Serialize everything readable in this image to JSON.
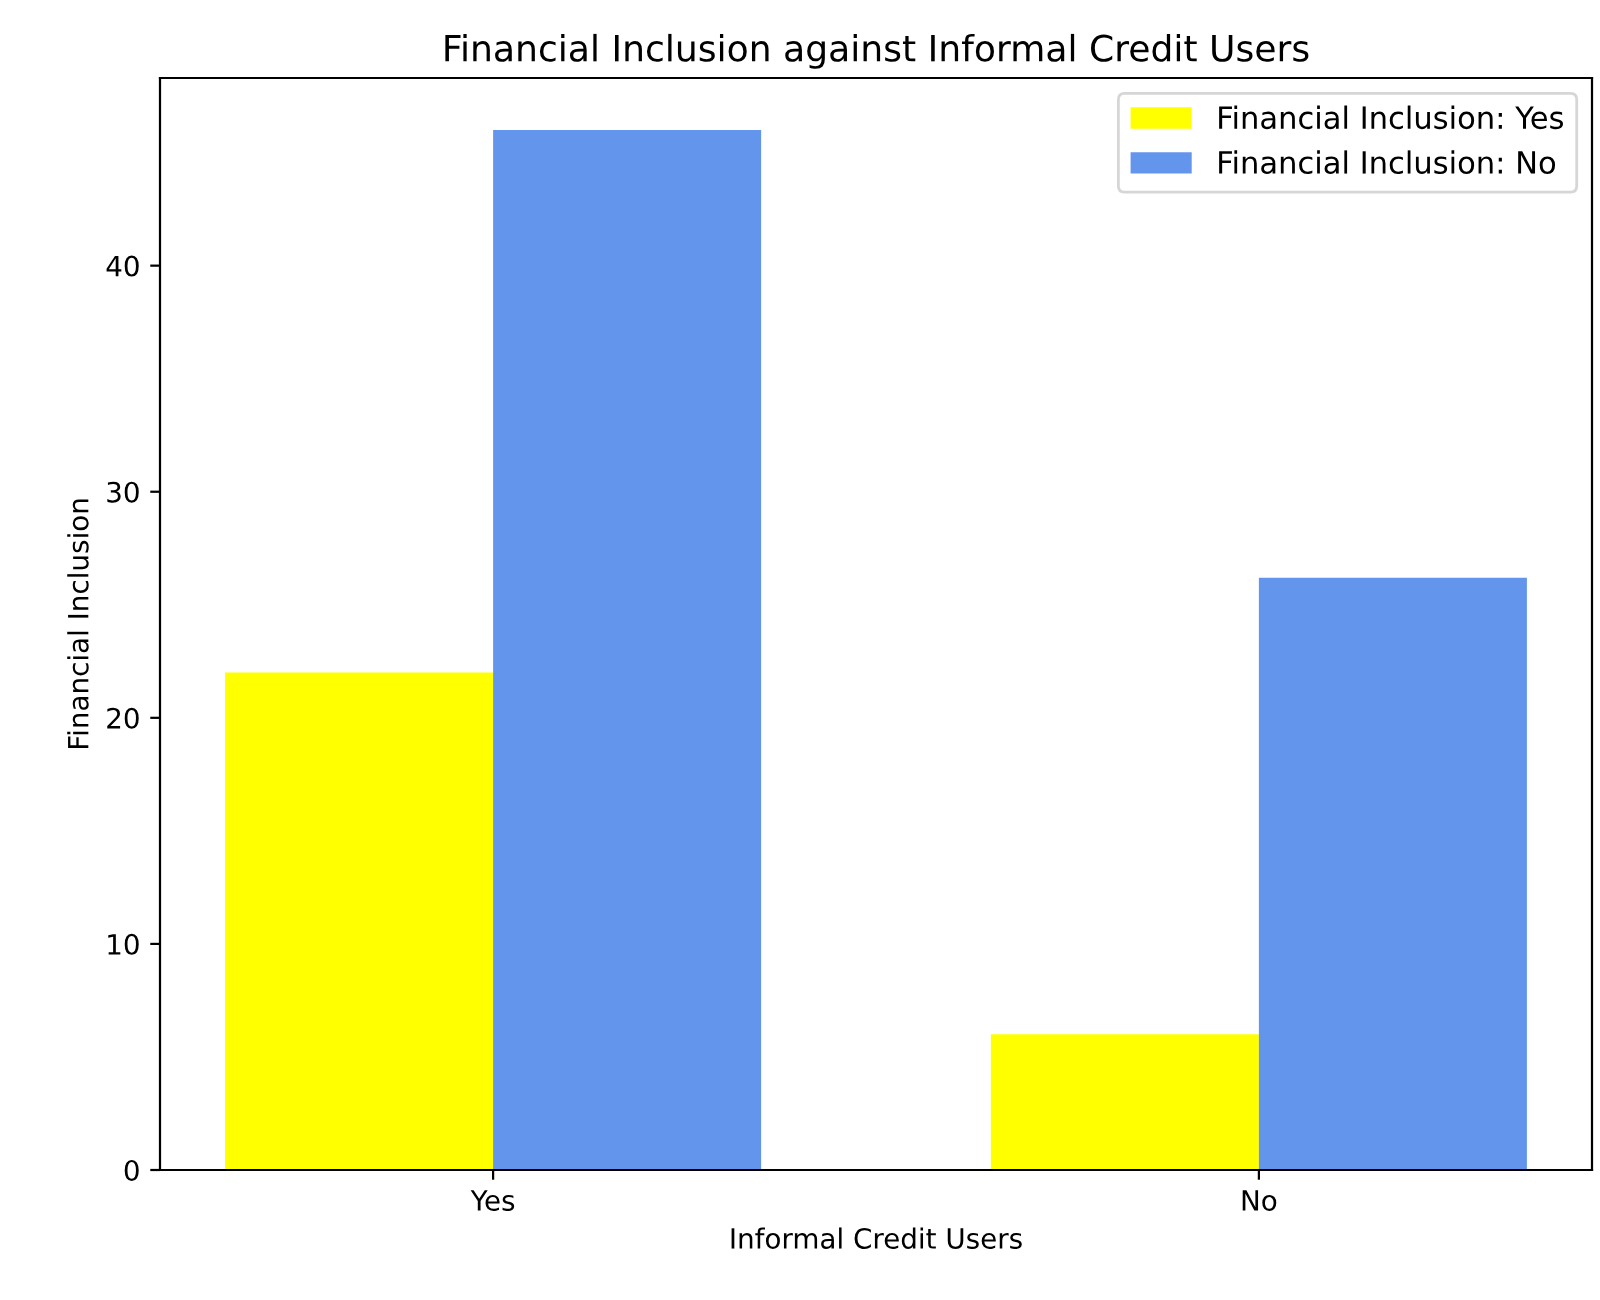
{
  "chart_data": {
    "type": "bar",
    "title": "Financial Inclusion against Informal Credit Users",
    "xlabel": "Informal Credit Users",
    "ylabel": "Financial Inclusion",
    "categories": [
      "Yes",
      "No"
    ],
    "series": [
      {
        "name": "Financial Inclusion: Yes",
        "color": "#ffff00",
        "values": [
          22,
          6
        ]
      },
      {
        "name": "Financial Inclusion: No",
        "color": "#6495ed",
        "values": [
          46,
          26.2
        ]
      }
    ],
    "ylim": [
      0,
      48.3
    ],
    "yticks": [
      0,
      10,
      20,
      30,
      40
    ],
    "grid": false,
    "legend": "top right"
  }
}
